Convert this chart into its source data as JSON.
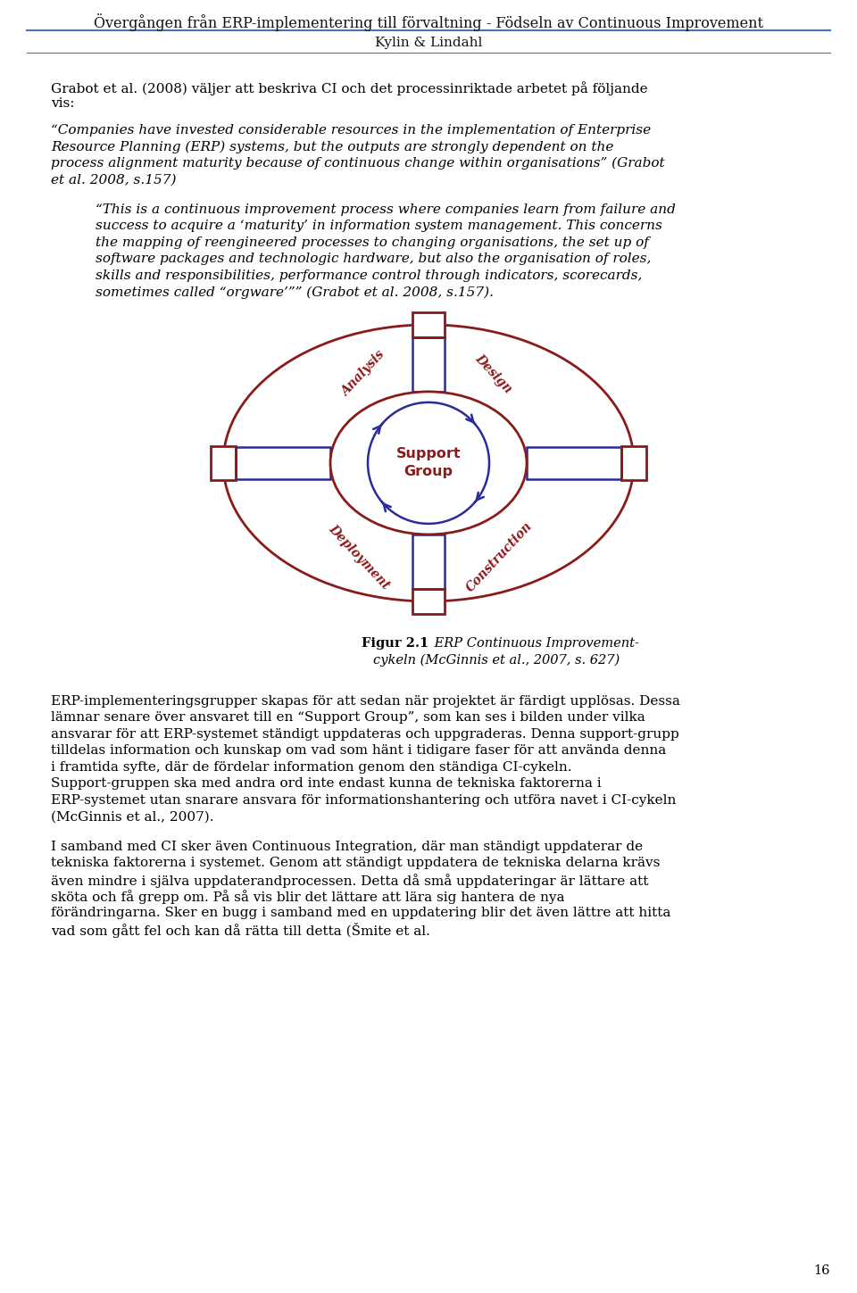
{
  "header_title": "Övergången från ERP-implementering till förvaltning - Födseln av Continuous Improvement",
  "header_subtitle": "Kylin & Lindahl",
  "page_number": "16",
  "background_color": "#ffffff",
  "text_color": "#000000",
  "header_line_color": "#4472c4",
  "diagram_red": "#8B1A1A",
  "diagram_blue": "#2B2B9B",
  "para0": "Grabot et al. (2008) väljer att beskriva CI och det processinriktade arbetet på följande vis:",
  "para1": "“Companies have invested considerable resources in the implementation of Enterprise Resource Planning (ERP) systems, but the outputs are strongly dependent on the process alignment maturity because of continuous change within organisations” (Grabot et al. 2008, s.157)",
  "para2": "“This is a continuous improvement process where companies learn from failure and success to acquire a ‘maturity’ in information system management. This concerns the mapping of reengineered processes to changing organisations, the set up of software packages and technologic hardware, but also the organisation of roles, skills and responsibilities, performance control through indicators, scorecards, sometimes called “orgware’”” (Grabot et al. 2008, s.157).",
  "figure_bold": "Figur 2.1",
  "figure_italic": " ERP Continuous Improvement-\ncykeln (McGinnis et al., 2007, s. 627)",
  "bp1": "ERP-implementeringsgrupper skapas för att sedan när projektet är färdigt upplösas. Dessa lämnar senare över ansvaret till en “Support Group”, som kan ses i bilden under vilka ansvarar för att ERP-systemet ständigt uppdateras och uppgraderas. Denna support-grupp tilldelas information och kunskap om vad som hänt i tidigare faser för att använda denna i framtida syfte, där de fördelar information genom den ständiga CI-cykeln. Support-gruppen ska med andra ord inte endast kunna de tekniska faktorerna i ERP-systemet utan snarare ansvara för informationshantering och utföra navet i CI-cykeln (McGinnis et al., 2007).",
  "bp2": "I samband med CI sker även Continuous Integration, där man ständigt uppdaterar de tekniska faktorerna i systemet. Genom att ständigt uppdatera de tekniska delarna krävs även mindre i själva uppdaterandprocessen. Detta då små uppdateringar är lättare att sköta och få grepp om. På så vis blir det lättare att lära sig hantera de nya förändringarna. Sker en bugg i samband med en uppdatering blir det även lättre att hitta vad som gått fel och kan då rätta till detta (Šmite et al."
}
